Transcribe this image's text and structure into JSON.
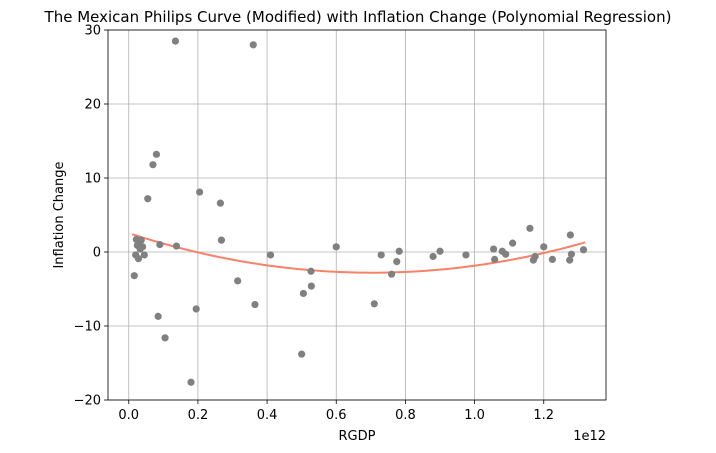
{
  "chart_data": {
    "type": "scatter",
    "title": "The Mexican Philips Curve (Modified) with Inflation Change (Polynomial Regression)",
    "xlabel": "RGDP",
    "ylabel": "Inflation Change",
    "x_offset_label": "1e12",
    "xlim": [
      -0.06,
      1.38
    ],
    "ylim": [
      -20,
      30
    ],
    "x_ticks": [
      0.0,
      0.2,
      0.4,
      0.6,
      0.8,
      1.0,
      1.2
    ],
    "x_tick_labels": [
      "0.0",
      "0.2",
      "0.4",
      "0.6",
      "0.8",
      "1.0",
      "1.2"
    ],
    "y_ticks": [
      -20,
      -10,
      0,
      10,
      20,
      30
    ],
    "y_tick_labels": [
      "−20",
      "−10",
      "0",
      "10",
      "20",
      "30"
    ],
    "grid": true,
    "colors": {
      "points": "#808080",
      "regression": "#fa8068"
    },
    "series": [
      {
        "kind": "scatter",
        "x": [
          0.016,
          0.02,
          0.022,
          0.025,
          0.028,
          0.03,
          0.033,
          0.036,
          0.04,
          0.045,
          0.055,
          0.07,
          0.08,
          0.085,
          0.09,
          0.105,
          0.135,
          0.138,
          0.18,
          0.195,
          0.205,
          0.265,
          0.268,
          0.315,
          0.36,
          0.365,
          0.41,
          0.5,
          0.505,
          0.527,
          0.528,
          0.6,
          0.71,
          0.73,
          0.76,
          0.775,
          0.782,
          0.88,
          0.9,
          0.975,
          1.055,
          1.058,
          1.08,
          1.09,
          1.11,
          1.16,
          1.17,
          1.175,
          1.2,
          1.225,
          1.275,
          1.277,
          1.28,
          1.315
        ],
        "y": [
          -3.2,
          -0.4,
          1.7,
          0.9,
          -0.9,
          1.2,
          0.4,
          1.6,
          0.7,
          -0.4,
          7.2,
          11.8,
          13.2,
          -8.7,
          1.0,
          -11.6,
          28.5,
          0.8,
          -17.6,
          -7.7,
          8.1,
          6.6,
          1.6,
          -3.9,
          28.0,
          -7.1,
          -0.4,
          -13.8,
          -5.6,
          -2.6,
          -4.6,
          0.7,
          -7.0,
          -0.4,
          -3.0,
          -1.3,
          0.1,
          -0.6,
          0.1,
          -0.4,
          0.4,
          -1.0,
          0.1,
          -0.3,
          1.2,
          3.2,
          -1.1,
          -0.6,
          0.7,
          -1.0,
          -1.1,
          2.3,
          -0.3,
          0.3
        ]
      },
      {
        "kind": "polynomial-fit",
        "degree": 2,
        "coefficients": [
          2.55,
          -15.2,
          10.8
        ],
        "x_range": [
          0.01,
          1.32
        ]
      }
    ]
  }
}
